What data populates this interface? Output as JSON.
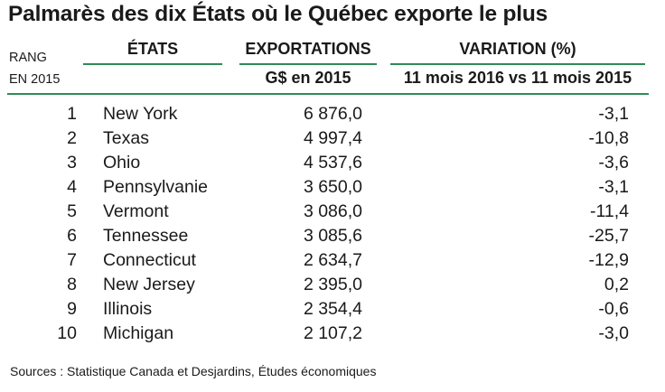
{
  "title": "Palmarès des dix États où le Québec exporte le plus",
  "headers": {
    "rank_line1": "RANG",
    "rank_line2": "EN 2015",
    "states": "ÉTATS",
    "exports": "EXPORTATIONS",
    "exports_unit": "G$ en 2015",
    "variation": "VARIATION (%)",
    "variation_period": "11 mois 2016 vs 11 mois 2015"
  },
  "rows": [
    {
      "rank": "1",
      "state": "New York",
      "exports": "6 876,0",
      "variation": "-3,1"
    },
    {
      "rank": "2",
      "state": "Texas",
      "exports": "4 997,4",
      "variation": "-10,8"
    },
    {
      "rank": "3",
      "state": "Ohio",
      "exports": "4 537,6",
      "variation": "-3,6"
    },
    {
      "rank": "4",
      "state": "Pennsylvanie",
      "exports": "3 650,0",
      "variation": "-3,1"
    },
    {
      "rank": "5",
      "state": "Vermont",
      "exports": "3 086,0",
      "variation": "-11,4"
    },
    {
      "rank": "6",
      "state": "Tennessee",
      "exports": "3 085,6",
      "variation": "-25,7"
    },
    {
      "rank": "7",
      "state": "Connecticut",
      "exports": "2 634,7",
      "variation": "-12,9"
    },
    {
      "rank": "8",
      "state": "New Jersey",
      "exports": "2 395,0",
      "variation": "0,2"
    },
    {
      "rank": "9",
      "state": "Illinois",
      "exports": "2 354,4",
      "variation": "-0,6"
    },
    {
      "rank": "10",
      "state": "Michigan",
      "exports": "2 107,2",
      "variation": "-3,0"
    }
  ],
  "source": "Sources : Statistique Canada et Desjardins, Études économiques",
  "colors": {
    "rule": "#2e8b57"
  }
}
